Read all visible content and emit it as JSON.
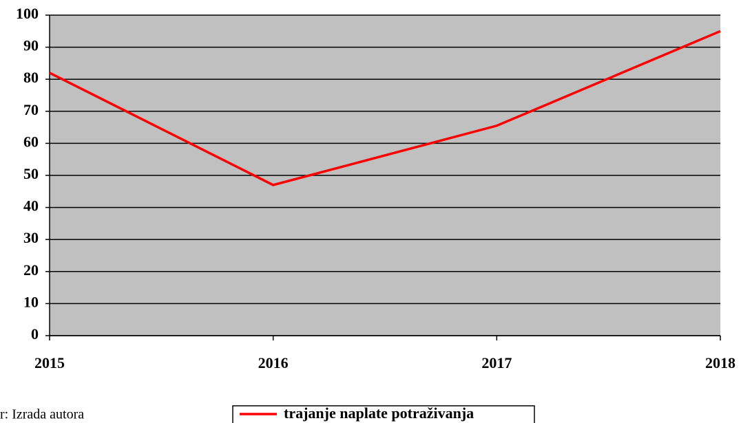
{
  "chart_data": {
    "type": "line",
    "categories": [
      "2015",
      "2016",
      "2017",
      "2018"
    ],
    "series": [
      {
        "name": "trajanje naplate potraživanja",
        "color": "#ff0000",
        "values": [
          82,
          47,
          65.5,
          95
        ]
      }
    ],
    "ylim": [
      0,
      100
    ],
    "yticks": [
      0,
      10,
      20,
      30,
      40,
      50,
      60,
      70,
      80,
      90,
      100
    ],
    "grid": true,
    "legend": "bottom",
    "note": "r: Izrada autora"
  }
}
